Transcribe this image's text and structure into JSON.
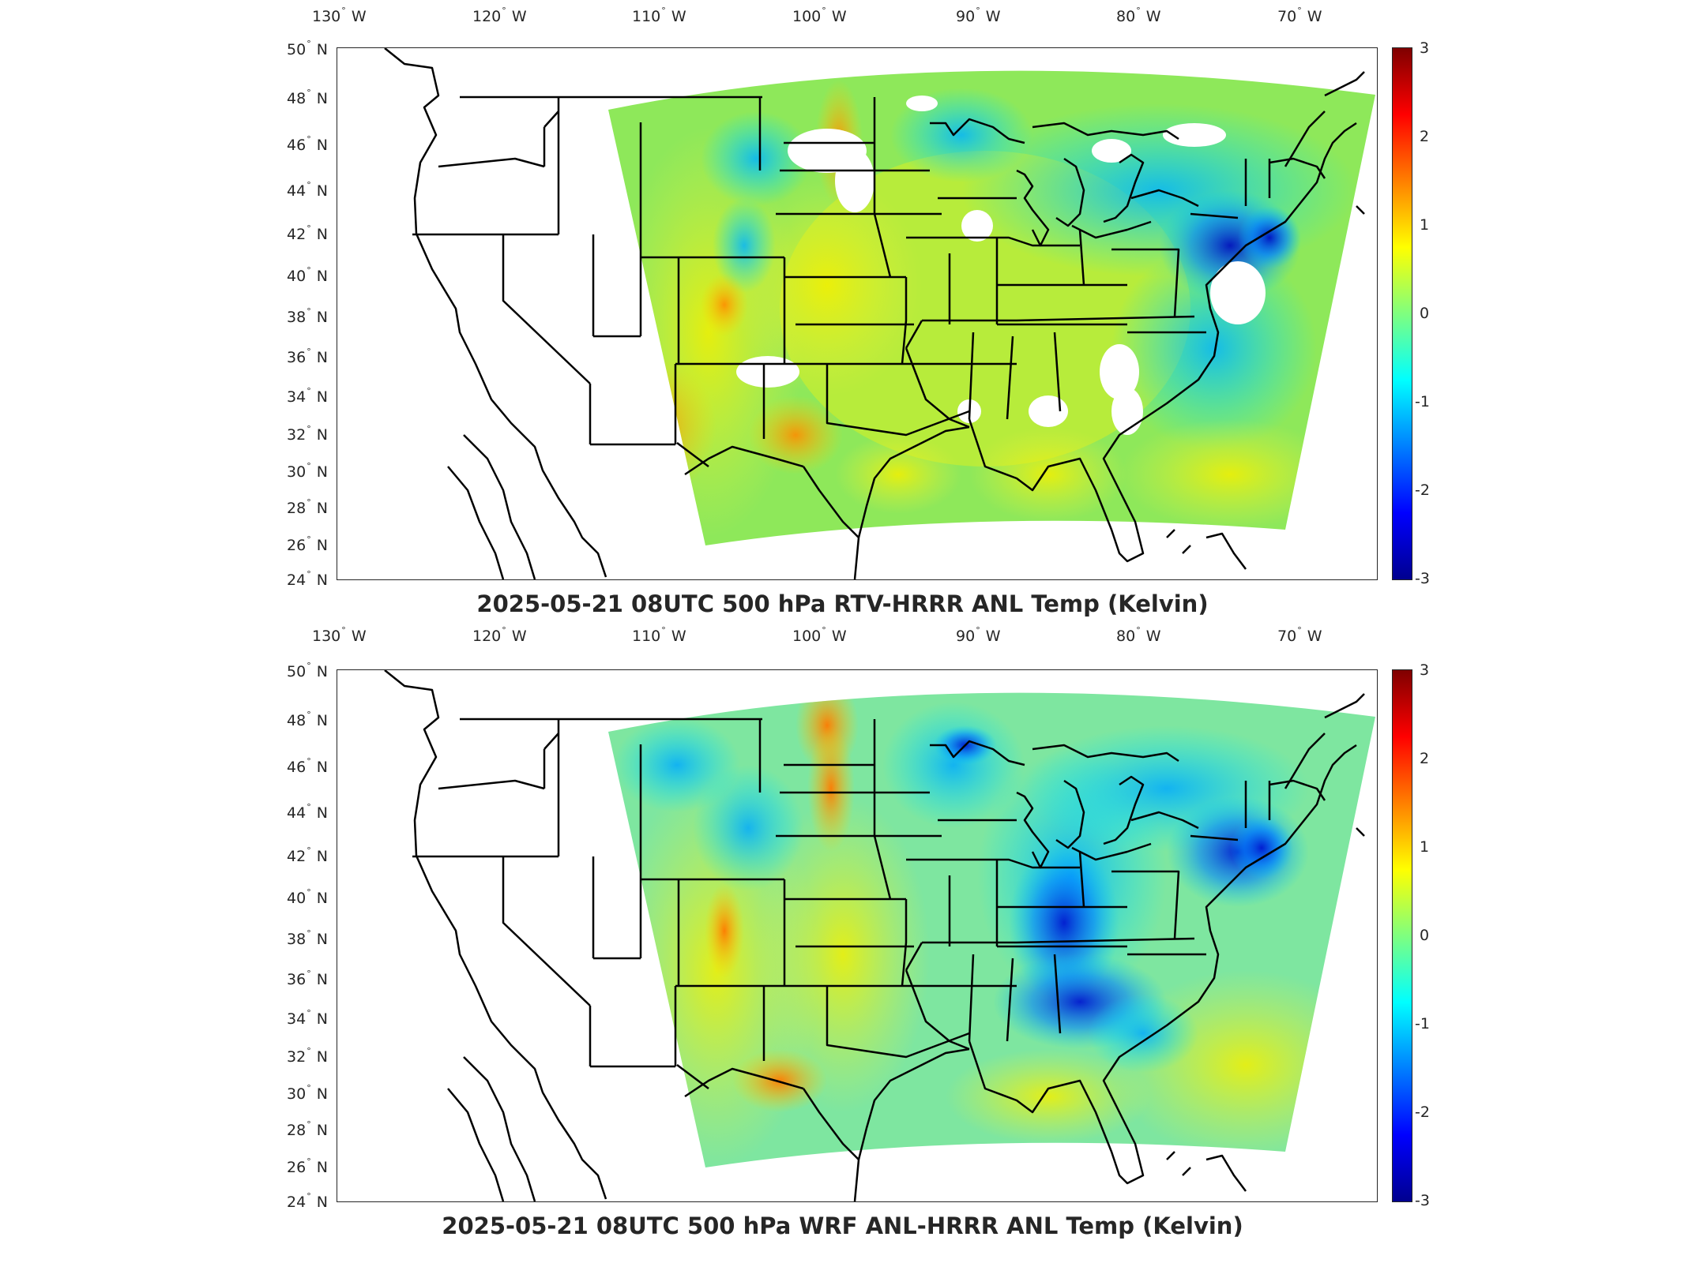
{
  "panels": [
    {
      "title": "2025-05-21 08UTC 500 hPa RTV-HRRR ANL Temp (Kelvin)",
      "lon_labels": [
        "130",
        "120",
        "110",
        "100",
        "90",
        "80",
        "70"
      ],
      "lat_labels": [
        "50",
        "48",
        "46",
        "44",
        "42",
        "40",
        "38",
        "36",
        "34",
        "32",
        "30",
        "28",
        "26",
        "24"
      ],
      "colorbar_ticks": [
        "3",
        "2",
        "1",
        "0",
        "-1",
        "-2",
        "-3"
      ]
    },
    {
      "title": "2025-05-21 08UTC 500 hPa WRF ANL-HRRR ANL Temp (Kelvin)",
      "lon_labels": [
        "130",
        "120",
        "110",
        "100",
        "90",
        "80",
        "70"
      ],
      "lat_labels": [
        "50",
        "48",
        "46",
        "44",
        "42",
        "40",
        "38",
        "36",
        "34",
        "32",
        "30",
        "28",
        "26",
        "24"
      ],
      "colorbar_ticks": [
        "3",
        "2",
        "1",
        "0",
        "-1",
        "-2",
        "-3"
      ]
    }
  ],
  "units": {
    "west": "W",
    "north": "N",
    "degree": "°"
  },
  "colormap": {
    "name": "jet",
    "range": [
      -3,
      3
    ]
  }
}
